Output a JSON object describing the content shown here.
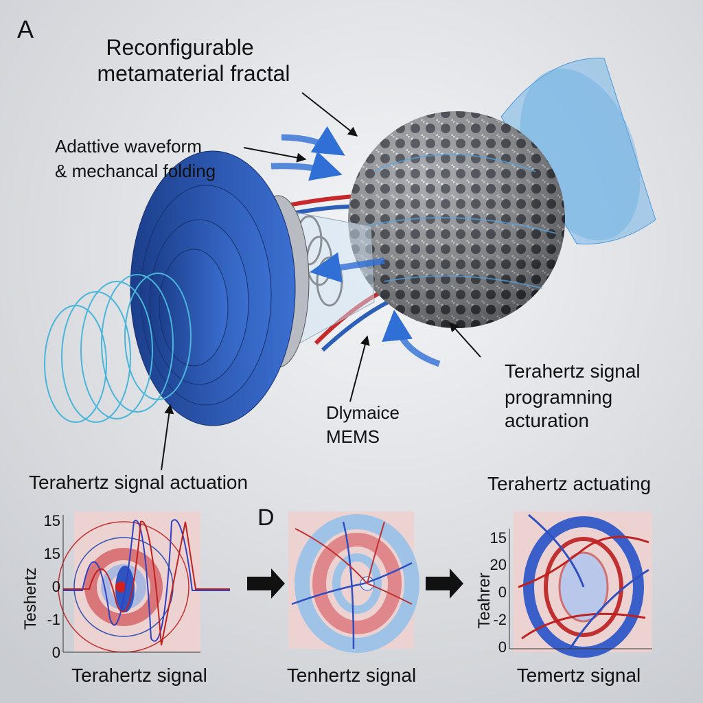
{
  "figure_label": "A",
  "title_lines": [
    "Reconfigurable",
    "metamaterial fractal"
  ],
  "waveform_lines": [
    "Adattive waveform",
    "& mechancal folding"
  ],
  "programming_lines": [
    "Terahertz signal",
    "programning",
    "acturation"
  ],
  "mems_lines": [
    "Dlymaice",
    "MEMS"
  ],
  "actuation_label": "Terahertz signal actuation",
  "actuating_label": "Terahertz actuating",
  "panel_label_d": "D",
  "panels": [
    {
      "ticks": [
        "15",
        "15",
        "0",
        "-1",
        "0"
      ],
      "y_label": "Teshertz",
      "x_label": "Terahertz signal"
    },
    {
      "x_label": "Tenhertz signal"
    },
    {
      "ticks": [
        "15",
        "20",
        "0",
        "-2",
        "0"
      ],
      "y_label": "Teahrer",
      "x_label": "Temertz signal"
    }
  ]
}
